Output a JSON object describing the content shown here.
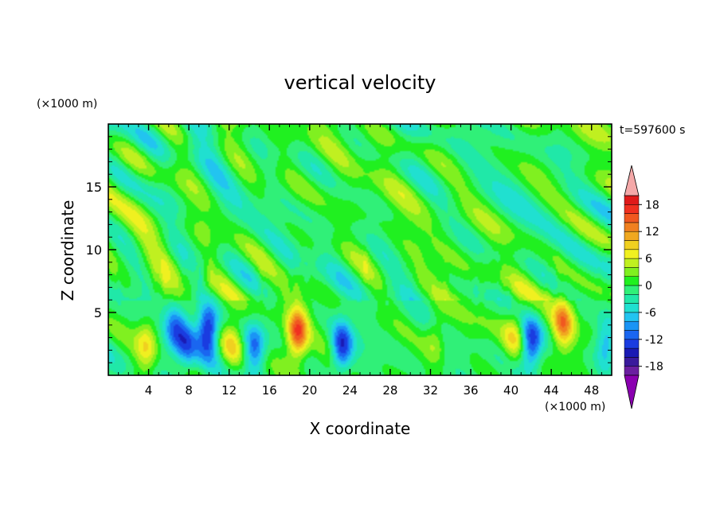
{
  "chart_data": {
    "type": "heatmap",
    "title": "vertical velocity",
    "xlabel": "X coordinate",
    "ylabel": "Z coordinate",
    "x_unit": "(×1000 m)",
    "y_unit": "(×1000 m)",
    "time_label": "t=597600 s",
    "xlim": [
      0,
      50
    ],
    "ylim": [
      0,
      20
    ],
    "x_ticks": [
      4,
      8,
      12,
      16,
      20,
      24,
      28,
      32,
      36,
      40,
      44,
      48
    ],
    "y_ticks": [
      5,
      10,
      15
    ],
    "colorbar": {
      "levels": [
        -20,
        -18,
        -16,
        -14,
        -12,
        -10,
        -8,
        -6,
        -4,
        -2,
        0,
        2,
        4,
        6,
        8,
        10,
        12,
        14,
        16,
        18,
        20
      ],
      "tick_labels": [
        18,
        12,
        6,
        0,
        -6,
        -12,
        -18
      ],
      "colors": [
        "#6b1fa0",
        "#3a1a9c",
        "#1a1ab4",
        "#1a3ce0",
        "#1a66f0",
        "#1a94f5",
        "#22c4f0",
        "#20e0d0",
        "#20e8a8",
        "#30f078",
        "#20f020",
        "#80f020",
        "#c0f020",
        "#f0f020",
        "#f0d020",
        "#f0a820",
        "#f08020",
        "#f05820",
        "#f03020",
        "#e01a1a"
      ],
      "extend_low_color": "#8a00b0",
      "extend_high_color": "#f4a8a8"
    },
    "features": [
      {
        "kind": "updraft",
        "x": 3.8,
        "z": 2.4,
        "peak": 8
      },
      {
        "kind": "downdraft",
        "x": 6.6,
        "z": 3.8,
        "peak": -10
      },
      {
        "kind": "downdraft",
        "x": 7.8,
        "z": 2.5,
        "peak": -10
      },
      {
        "kind": "downdraft",
        "x": 9.9,
        "z": 3.5,
        "peak": -16
      },
      {
        "kind": "updraft",
        "x": 12.2,
        "z": 2.4,
        "peak": 6
      },
      {
        "kind": "downdraft",
        "x": 14.5,
        "z": 2.0,
        "peak": -12
      },
      {
        "kind": "updraft",
        "x": 18.8,
        "z": 3.4,
        "peak": 16
      },
      {
        "kind": "downdraft",
        "x": 23.2,
        "z": 2.2,
        "peak": -14
      },
      {
        "kind": "updraft",
        "x": 32.5,
        "z": 3.0,
        "peak": 5
      },
      {
        "kind": "updraft",
        "x": 40.3,
        "z": 3.2,
        "peak": 6
      },
      {
        "kind": "downdraft",
        "x": 42.0,
        "z": 2.4,
        "peak": -14
      },
      {
        "kind": "updraft",
        "x": 45.2,
        "z": 4.2,
        "peak": 12
      },
      {
        "kind": "downdraft",
        "x": 49.5,
        "z": 2.5,
        "peak": -9
      }
    ]
  }
}
